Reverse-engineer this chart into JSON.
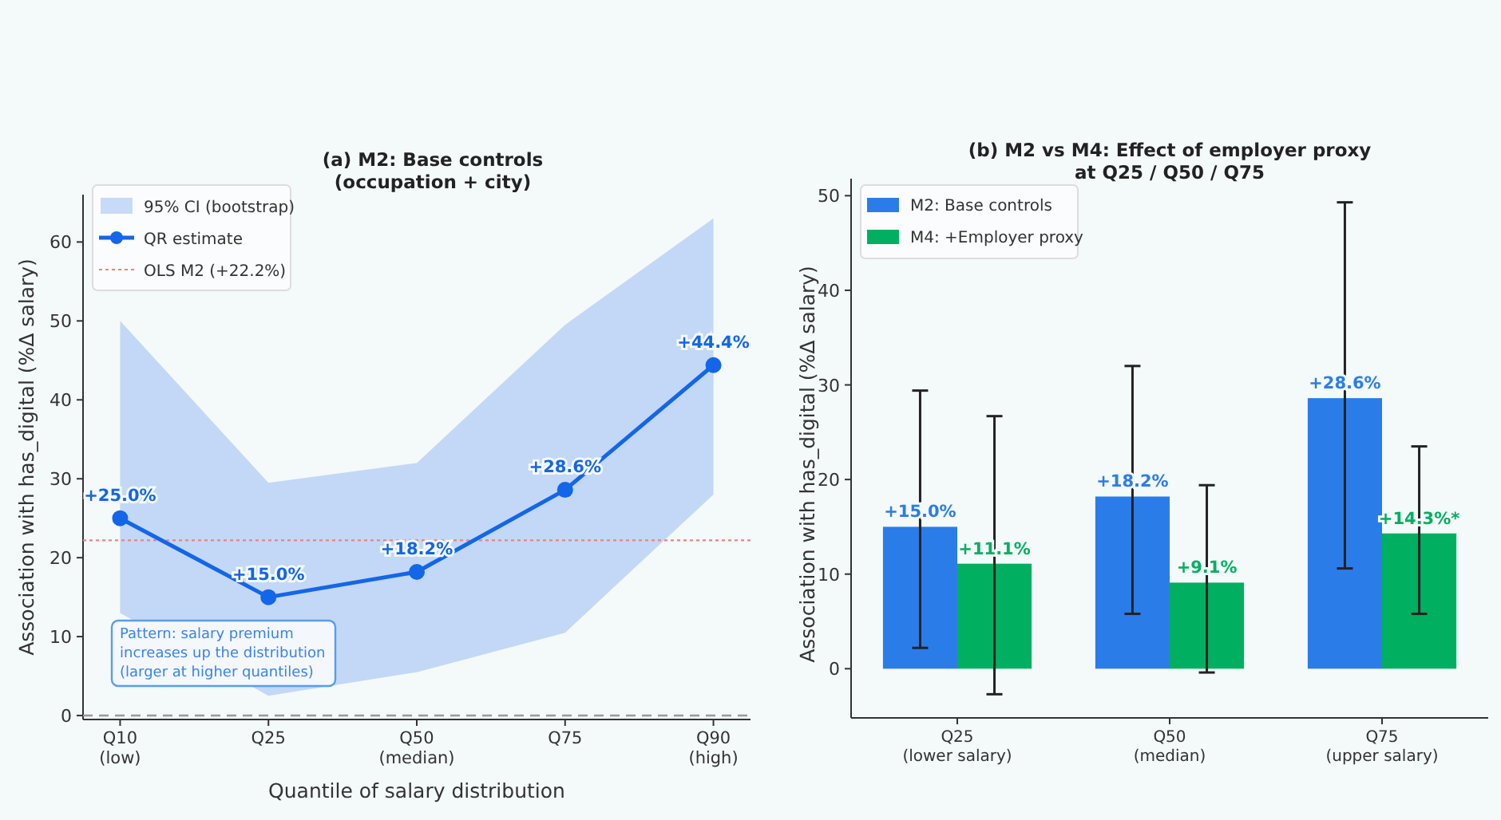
{
  "chart_data": [
    {
      "type": "line",
      "title": "(a) M2: Base controls\n(occupation + city)",
      "xlabel": "Quantile of salary distribution",
      "ylabel": "Association with has_digital (%Δ salary)",
      "categories": [
        "Q10\n(low)",
        "Q25",
        "Q50\n(median)",
        "Q75",
        "Q90\n(high)"
      ],
      "ylim": [
        -0.5,
        66
      ],
      "yticks": [
        0,
        10,
        20,
        30,
        40,
        50,
        60
      ],
      "grid": false,
      "legend": "top left",
      "marker": "circle",
      "line_style": "solid",
      "series": [
        {
          "type": "line",
          "name": "QR estimate",
          "color": "#1466e8",
          "values": [
            25.0,
            15.0,
            18.2,
            28.6,
            44.4
          ],
          "lower": [
            13,
            2.5,
            5.5,
            10.5,
            28
          ],
          "upper": [
            50,
            29.5,
            32,
            49.5,
            63
          ],
          "value_labels": [
            "+25.0%",
            "+15.0%",
            "+18.2%",
            "+28.6%",
            "+44.4%"
          ]
        }
      ],
      "ref_lines": [
        {
          "axis": "y",
          "value": 22.2,
          "label": "OLS M2 (+22.2%)",
          "color": "#f08080",
          "line_style": "dotted"
        },
        {
          "axis": "y",
          "value": 0,
          "label": null,
          "color": "#999999",
          "line_style": "dashed"
        }
      ],
      "annotations": [
        "Pattern: salary premium\nincreases up the distribution\n(larger at higher quantiles)",
        "95% CI (bootstrap)"
      ]
    },
    {
      "type": "bar",
      "title": "(b) M2 vs M4: Effect of employer proxy\nat Q25 / Q50 / Q75",
      "ylabel": "Association with has_digital (%Δ salary)",
      "categories": [
        "Q25\n(lower salary)",
        "Q50\n(median)",
        "Q75\n(upper salary)"
      ],
      "ylim": [
        -5.2,
        51.8
      ],
      "yticks": [
        0,
        10,
        20,
        30,
        40,
        50
      ],
      "grid": false,
      "legend": "top left",
      "series": [
        {
          "name": "M2: Base controls",
          "color": "#2a7de9",
          "values": [
            15.0,
            18.2,
            28.6
          ],
          "errors": [
            [
              2.2,
              29.4
            ],
            [
              5.8,
              32
            ],
            [
              10.6,
              49.3
            ]
          ],
          "value_labels": [
            "+15.0%",
            "+18.2%",
            "+28.6%"
          ]
        },
        {
          "name": "M4: +Employer proxy",
          "color": "#00b060",
          "values": [
            11.1,
            9.1,
            14.3
          ],
          "errors": [
            [
              -2.7,
              26.7
            ],
            [
              -0.4,
              19.4
            ],
            [
              5.8,
              23.5
            ]
          ],
          "value_labels": [
            "+11.1%",
            "+9.1%",
            "+14.3%*"
          ]
        }
      ]
    }
  ]
}
